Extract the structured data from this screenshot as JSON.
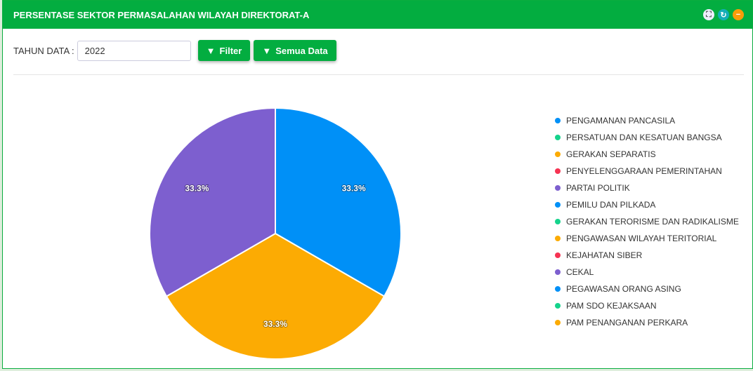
{
  "header": {
    "title": "PERSENTASE SEKTOR PERMASALAHAN WILAYAH DIREKTORAT-A",
    "icons": [
      "expand-icon",
      "refresh-icon",
      "minimize-icon"
    ]
  },
  "filter": {
    "label": "TAHUN DATA :",
    "year": "2022",
    "filter_label": "Filter",
    "all_label": "Semua Data"
  },
  "chart_data": {
    "type": "pie",
    "title": "PERSENTASE SEKTOR PERMASALAHAN WILAYAH DIREKTORAT-A",
    "legend_position": "right",
    "categories": [
      "PENGAMANAN PANCASILA",
      "PERSATUAN DAN KESATUAN BANGSA",
      "GERAKAN SEPARATIS",
      "PENYELENGGARAAN PEMERINTAHAN",
      "PARTAI POLITIK",
      "PEMILU DAN PILKADA",
      "GERAKAN TERORISME DAN RADIKALISME",
      "PENGAWASAN WILAYAH TERITORIAL",
      "KEJAHATAN SIBER",
      "CEKAL",
      "PEGAWASAN ORANG ASING",
      "PAM SDO KEJAKSAAN",
      "PAM PENANGANAN PERKARA"
    ],
    "values": [
      1,
      0,
      1,
      0,
      1,
      0,
      0,
      0,
      0,
      0,
      0,
      0,
      0
    ],
    "colors": [
      "#0090f7",
      "#15d38c",
      "#fcab03",
      "#f63352",
      "#7d5fcf",
      "#0090f7",
      "#15d38c",
      "#fcab03",
      "#f63352",
      "#7d5fcf",
      "#0090f7",
      "#15d38c",
      "#fcab03"
    ],
    "labels": [
      "33.3%",
      "33.3%",
      "33.3%"
    ]
  }
}
